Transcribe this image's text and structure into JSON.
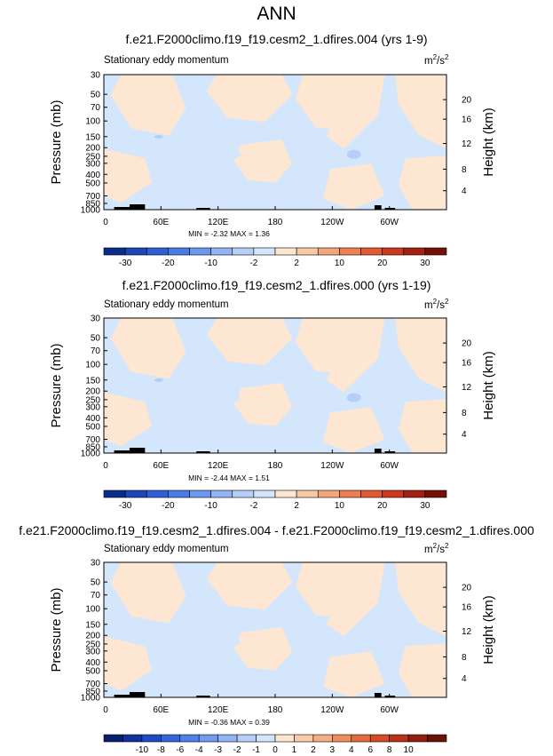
{
  "page": {
    "title": "ANN"
  },
  "colors": {
    "warm_light": "#fde7d3",
    "cool_light": "#d4e6fb",
    "cool_mid": "#b7cff6",
    "terrain": "#000000"
  },
  "panels": [
    {
      "case_title": "f.e21.F2000climo.f19_f19.cesm2_1.dfires.004 (yrs 1-9)",
      "var_label": "Stationary eddy momentum",
      "units_base": "m",
      "units_exp1": "2",
      "units_mid": "/s",
      "units_exp2": "2",
      "ylabel": "Pressure (mb)",
      "ylabel_right": "Height (km)",
      "stats_text": "MIN = -2.32 MAX = 1.36",
      "colorbar_labels": [
        "-30",
        "-20",
        "-10",
        "-2",
        "2",
        "10",
        "20",
        "30"
      ]
    },
    {
      "case_title": "f.e21.F2000climo.f19_f19.cesm2_1.dfires.000 (yrs 1-19)",
      "var_label": "Stationary eddy momentum",
      "units_base": "m",
      "units_exp1": "2",
      "units_mid": "/s",
      "units_exp2": "2",
      "ylabel": "Pressure (mb)",
      "ylabel_right": "Height (km)",
      "stats_text": "MIN = -2.44 MAX = 1.51",
      "colorbar_labels": [
        "-30",
        "-20",
        "-10",
        "-2",
        "2",
        "10",
        "20",
        "30"
      ]
    },
    {
      "case_title": "f.e21.F2000climo.f19_f19.cesm2_1.dfires.004 - f.e21.F2000climo.f19_f19.cesm2_1.dfires.000",
      "var_label": "Stationary eddy momentum",
      "units_base": "m",
      "units_exp1": "2",
      "units_mid": "/s",
      "units_exp2": "2",
      "ylabel": "Pressure (mb)",
      "ylabel_right": "Height (km)",
      "stats_text": "MIN = -0.36 MAX = 0.39",
      "colorbar_labels": [
        "-10",
        "-8",
        "-6",
        "-4",
        "-3",
        "-2",
        "-1",
        "0",
        "1",
        "2",
        "3",
        "4",
        "6",
        "8",
        "10"
      ]
    }
  ],
  "chart_data": [
    {
      "type": "heatmap",
      "title": "f.e21.F2000climo.f19_f19.cesm2_1.dfires.004 (yrs 1-9)",
      "subtitle": "Stationary eddy momentum",
      "xlabel": "",
      "ylabel": "Pressure (mb)",
      "y2label": "Height (km)",
      "units": "m2/s2",
      "x_ticks": [
        "0",
        "60E",
        "120E",
        "180",
        "120W",
        "60W"
      ],
      "y_ticks": [
        "30",
        "50",
        "70",
        "100",
        "150",
        "200",
        "250",
        "300",
        "400",
        "500",
        "700",
        "850",
        "1000"
      ],
      "y2_ticks": [
        "20",
        "16",
        "12",
        "8",
        "4"
      ],
      "colorbar_levels": [
        -30,
        -20,
        -10,
        -2,
        2,
        10,
        20,
        30
      ],
      "colorbar_colors": [
        "#0a2c8c",
        "#1b45b8",
        "#2e5fd6",
        "#4a7ce8",
        "#6e98f0",
        "#93b3f5",
        "#b7cff6",
        "#d4e6fb",
        "#fde7d3",
        "#f9c9a6",
        "#f4a57a",
        "#ee7f52",
        "#e35a32",
        "#c93a1e",
        "#a22111",
        "#741006"
      ],
      "min": -2.32,
      "max": 1.36
    },
    {
      "type": "heatmap",
      "title": "f.e21.F2000climo.f19_f19.cesm2_1.dfires.000 (yrs 1-19)",
      "subtitle": "Stationary eddy momentum",
      "xlabel": "",
      "ylabel": "Pressure (mb)",
      "y2label": "Height (km)",
      "units": "m2/s2",
      "x_ticks": [
        "0",
        "60E",
        "120E",
        "180",
        "120W",
        "60W"
      ],
      "y_ticks": [
        "30",
        "50",
        "70",
        "100",
        "150",
        "200",
        "250",
        "300",
        "400",
        "500",
        "700",
        "850",
        "1000"
      ],
      "y2_ticks": [
        "20",
        "16",
        "12",
        "8",
        "4"
      ],
      "colorbar_levels": [
        -30,
        -20,
        -10,
        -2,
        2,
        10,
        20,
        30
      ],
      "colorbar_colors": [
        "#0a2c8c",
        "#1b45b8",
        "#2e5fd6",
        "#4a7ce8",
        "#6e98f0",
        "#93b3f5",
        "#b7cff6",
        "#d4e6fb",
        "#fde7d3",
        "#f9c9a6",
        "#f4a57a",
        "#ee7f52",
        "#e35a32",
        "#c93a1e",
        "#a22111",
        "#741006"
      ],
      "min": -2.44,
      "max": 1.51
    },
    {
      "type": "heatmap",
      "title": "f.e21.F2000climo.f19_f19.cesm2_1.dfires.004 - f.e21.F2000climo.f19_f19.cesm2_1.dfires.000",
      "subtitle": "Stationary eddy momentum",
      "xlabel": "",
      "ylabel": "Pressure (mb)",
      "y2label": "Height (km)",
      "units": "m2/s2",
      "x_ticks": [
        "0",
        "60E",
        "120E",
        "180",
        "120W",
        "60W"
      ],
      "y_ticks": [
        "30",
        "50",
        "70",
        "100",
        "150",
        "200",
        "250",
        "300",
        "400",
        "500",
        "700",
        "850",
        "1000"
      ],
      "y2_ticks": [
        "20",
        "16",
        "12",
        "8",
        "4"
      ],
      "colorbar_levels": [
        -10,
        -8,
        -6,
        -4,
        -3,
        -2,
        -1,
        0,
        1,
        2,
        3,
        4,
        6,
        8,
        10
      ],
      "colorbar_colors": [
        "#08206e",
        "#0f32a0",
        "#1d4bc4",
        "#3366dc",
        "#4f80ea",
        "#6f9bf2",
        "#93b5f6",
        "#b7cff8",
        "#d4e6fb",
        "#fde7d3",
        "#f9cba9",
        "#f5ae82",
        "#ef8d5c",
        "#e66b3c",
        "#d44c26",
        "#b83217",
        "#92200d",
        "#6b1207"
      ],
      "min": -0.36,
      "max": 0.39
    }
  ]
}
